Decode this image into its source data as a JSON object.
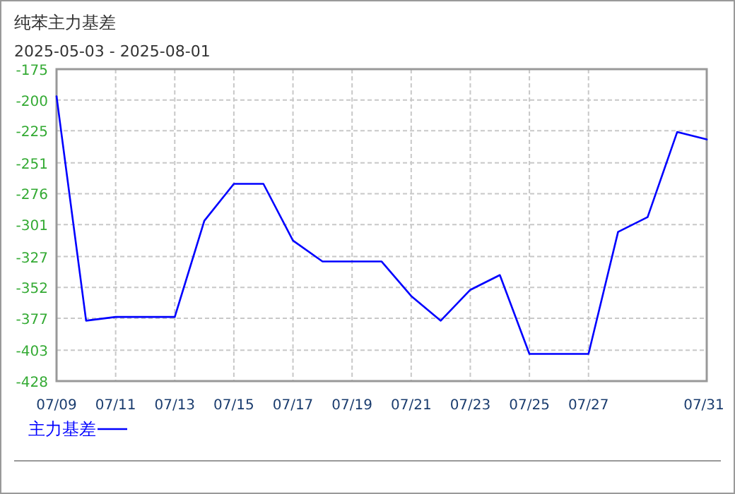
{
  "chart_data": {
    "type": "line",
    "title": "纯苯主力基差",
    "subtitle": "2025-05-03 - 2025-08-01",
    "x": [
      "2025-07-09",
      "2025-07-10",
      "2025-07-11",
      "2025-07-12",
      "2025-07-13",
      "2025-07-14",
      "2025-07-15",
      "2025-07-16",
      "2025-07-17",
      "2025-07-18",
      "2025-07-19",
      "2025-07-20",
      "2025-07-21",
      "2025-07-22",
      "2025-07-23",
      "2025-07-24",
      "2025-07-25",
      "2025-07-26",
      "2025-07-27",
      "2025-07-28",
      "2025-07-29",
      "2025-07-30",
      "2025-07-31"
    ],
    "series": [
      {
        "name": "主力基差",
        "color": "#0000ff",
        "values": [
          -197,
          -379,
          -376,
          -376,
          -376,
          -298,
          -268,
          -268,
          -314,
          -331,
          -331,
          -331,
          -359,
          -379,
          -354,
          -342,
          -406,
          -406,
          -406,
          -307,
          -295,
          -226,
          -232
        ]
      }
    ],
    "xlim": [
      "2025-07-09",
      "2025-07-31"
    ],
    "xticks": [
      {
        "value": "2025-07-09",
        "label": "07/09"
      },
      {
        "value": "2025-07-11",
        "label": "07/11"
      },
      {
        "value": "2025-07-13",
        "label": "07/13"
      },
      {
        "value": "2025-07-15",
        "label": "07/15"
      },
      {
        "value": "2025-07-17",
        "label": "07/17"
      },
      {
        "value": "2025-07-19",
        "label": "07/19"
      },
      {
        "value": "2025-07-21",
        "label": "07/21"
      },
      {
        "value": "2025-07-23",
        "label": "07/23"
      },
      {
        "value": "2025-07-25",
        "label": "07/25"
      },
      {
        "value": "2025-07-27",
        "label": "07/27"
      },
      {
        "value": "2025-07-31",
        "label": "07/31"
      }
    ],
    "ylim": [
      -428,
      -175
    ],
    "yticks": [
      -428,
      -403,
      -377,
      -352,
      -327,
      -301,
      -276,
      -251,
      -225,
      -200,
      -175
    ],
    "grid": true,
    "legend": "bottom left",
    "marker": "none",
    "line_style": "solid"
  }
}
